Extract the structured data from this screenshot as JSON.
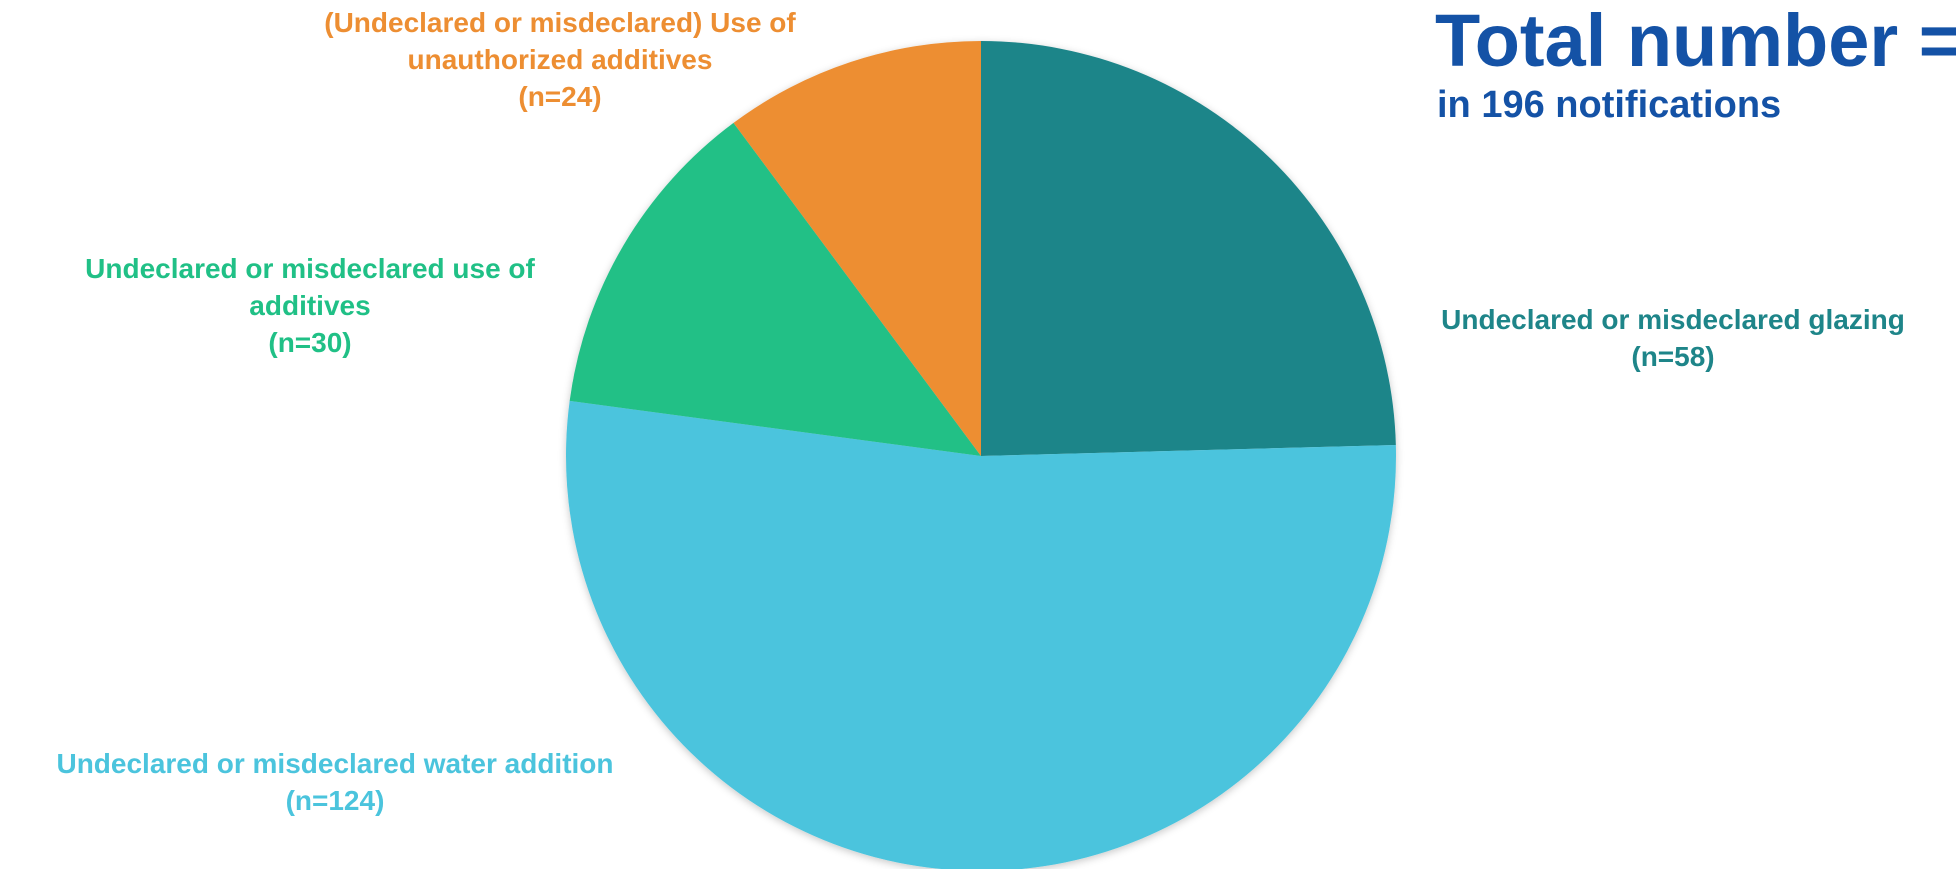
{
  "header": {
    "title": "Total number =",
    "subtitle": "in 196 notifications"
  },
  "colors": {
    "title": "#1452a6"
  },
  "chart_data": {
    "type": "pie",
    "start_angle_deg": 0,
    "direction": "clockwise",
    "slices": [
      {
        "name": "Undeclared or misdeclared glazing",
        "value": 58,
        "lines": [
          "Undeclared or misdeclared glazing"
        ],
        "count_label": "(n=58)",
        "color": "#1e8589"
      },
      {
        "name": "Undeclared or misdeclared water addition",
        "value": 124,
        "lines": [
          "Undeclared or misdeclared water addition"
        ],
        "count_label": "(n=124)",
        "color": "#4bc4dd"
      },
      {
        "name": "Undeclared or misdeclared use of additives",
        "value": 30,
        "lines": [
          "Undeclared or misdeclared use of",
          "additives"
        ],
        "count_label": "(n=30)",
        "color": "#20c086"
      },
      {
        "name": "(Undeclared or misdeclared) Use of unauthorized additives",
        "value": 24,
        "lines": [
          "(Undeclared or misdeclared) Use of",
          "unauthorized additives"
        ],
        "count_label": "(n=24)",
        "color": "#ed8e32"
      }
    ]
  }
}
